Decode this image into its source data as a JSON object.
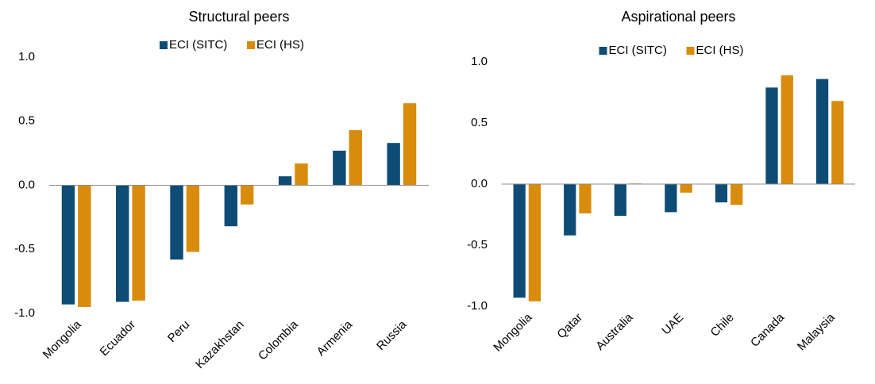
{
  "chart_data": [
    {
      "type": "bar",
      "title": "Structural peers",
      "categories": [
        "Mongolia",
        "Ecuador",
        "Peru",
        "Kazakhstan",
        "Colombia",
        "Armenia",
        "Russia"
      ],
      "series": [
        {
          "name": "ECI (SITC)",
          "color": "#0f4c75",
          "values": [
            -0.93,
            -0.91,
            -0.58,
            -0.32,
            0.07,
            0.27,
            0.33
          ]
        },
        {
          "name": "ECI (HS)",
          "color": "#d98c0c",
          "values": [
            -0.95,
            -0.9,
            -0.52,
            -0.15,
            0.17,
            0.43,
            0.64
          ]
        }
      ],
      "ylim": [
        -1,
        1
      ],
      "yticks": [
        {
          "value": 1,
          "label": "1.0"
        },
        0.5,
        {
          "value": 0,
          "label": "0.0"
        },
        -0.5,
        {
          "value": -1,
          "label": "-1.0"
        }
      ],
      "legend": "top"
    },
    {
      "type": "bar",
      "title": "Aspirational peers",
      "categories": [
        "Mongolia",
        "Qatar",
        "Australia",
        "UAE",
        "Chile",
        "Canada",
        "Malaysia"
      ],
      "series": [
        {
          "name": "ECI (SITC)",
          "color": "#0f4c75",
          "values": [
            -0.93,
            -0.42,
            -0.26,
            -0.23,
            -0.15,
            0.79,
            0.86
          ]
        },
        {
          "name": "ECI (HS)",
          "color": "#d98c0c",
          "values": [
            -0.96,
            -0.24,
            0.005,
            -0.07,
            -0.17,
            0.89,
            0.68
          ]
        }
      ],
      "ylim": [
        -1,
        1
      ],
      "yticks": [
        {
          "value": 1,
          "label": "1.0"
        },
        0.5,
        {
          "value": 0,
          "label": "0.0"
        },
        -0.5,
        {
          "value": -1,
          "label": "-1.0"
        }
      ],
      "legend": "top"
    }
  ]
}
